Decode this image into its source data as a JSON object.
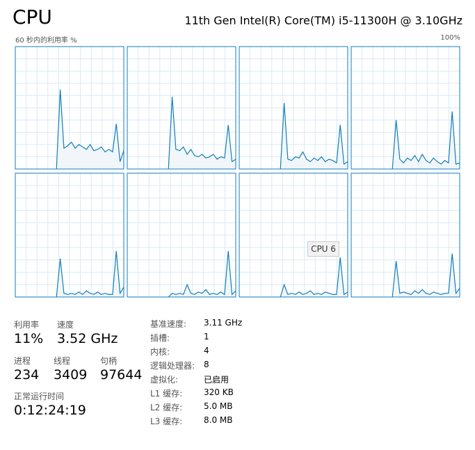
{
  "header": {
    "title": "CPU",
    "processor": "11th Gen Intel(R) Core(TM) i5-11300H @ 3.10GHz"
  },
  "graphs": {
    "caption": "60 秒内的利用率 %",
    "max_label": "100%",
    "ylim": [
      0,
      100
    ],
    "color": "#117dbb",
    "tooltip": "CPU 6",
    "cpus": [
      {
        "values": [
          null,
          null,
          null,
          null,
          null,
          null,
          null,
          null,
          null,
          null,
          null,
          0,
          65,
          17,
          19,
          22,
          17,
          20,
          18,
          16,
          20,
          15,
          16,
          18,
          14,
          16,
          14,
          37,
          6,
          15
        ]
      },
      {
        "values": [
          null,
          null,
          null,
          null,
          null,
          null,
          null,
          null,
          null,
          null,
          null,
          0,
          59,
          16,
          15,
          18,
          12,
          16,
          11,
          10,
          12,
          9,
          10,
          12,
          8,
          10,
          9,
          36,
          6,
          8
        ]
      },
      {
        "values": [
          null,
          null,
          null,
          null,
          null,
          null,
          null,
          null,
          null,
          null,
          null,
          0,
          54,
          8,
          7,
          10,
          9,
          14,
          8,
          6,
          9,
          7,
          10,
          6,
          8,
          7,
          5,
          36,
          4,
          6
        ]
      },
      {
        "values": [
          null,
          null,
          null,
          null,
          null,
          null,
          null,
          null,
          null,
          null,
          null,
          0,
          40,
          8,
          5,
          9,
          7,
          11,
          6,
          12,
          7,
          5,
          9,
          6,
          4,
          7,
          5,
          47,
          4,
          5
        ]
      },
      {
        "values": [
          null,
          null,
          null,
          null,
          null,
          null,
          null,
          null,
          null,
          null,
          null,
          0,
          31,
          3,
          2,
          3,
          2,
          4,
          2,
          5,
          3,
          2,
          4,
          2,
          3,
          2,
          2,
          37,
          3,
          8
        ]
      },
      {
        "values": [
          null,
          null,
          null,
          null,
          null,
          null,
          null,
          null,
          null,
          null,
          null,
          0,
          3,
          2,
          3,
          2,
          10,
          3,
          2,
          4,
          3,
          6,
          2,
          3,
          2,
          4,
          2,
          37,
          2,
          5
        ]
      },
      {
        "values": [
          null,
          null,
          null,
          null,
          null,
          null,
          null,
          null,
          null,
          null,
          null,
          0,
          10,
          2,
          3,
          2,
          4,
          2,
          3,
          5,
          2,
          3,
          2,
          4,
          3,
          2,
          2,
          32,
          2,
          4
        ]
      },
      {
        "values": [
          null,
          null,
          null,
          null,
          null,
          null,
          null,
          null,
          null,
          null,
          null,
          0,
          29,
          3,
          4,
          3,
          2,
          5,
          3,
          6,
          3,
          2,
          4,
          3,
          2,
          3,
          3,
          35,
          3,
          7
        ]
      }
    ]
  },
  "stats": {
    "utilization": {
      "label": "利用率",
      "value": "11%"
    },
    "speed": {
      "label": "速度",
      "value": "3.52 GHz"
    },
    "processes": {
      "label": "进程",
      "value": "234"
    },
    "threads": {
      "label": "线程",
      "value": "3409"
    },
    "handles": {
      "label": "句柄",
      "value": "97644"
    },
    "uptime": {
      "label": "正常运行时间",
      "value": "0:12:24:19"
    }
  },
  "details": [
    [
      "基准速度:",
      "3.11 GHz"
    ],
    [
      "插槽:",
      "1"
    ],
    [
      "内核:",
      "4"
    ],
    [
      "逻辑处理器:",
      "8"
    ],
    [
      "虚拟化:",
      "已启用"
    ],
    [
      "L1 缓存:",
      "320 KB"
    ],
    [
      "L2 缓存:",
      "5.0 MB"
    ],
    [
      "L3 缓存:",
      "8.0 MB"
    ]
  ]
}
